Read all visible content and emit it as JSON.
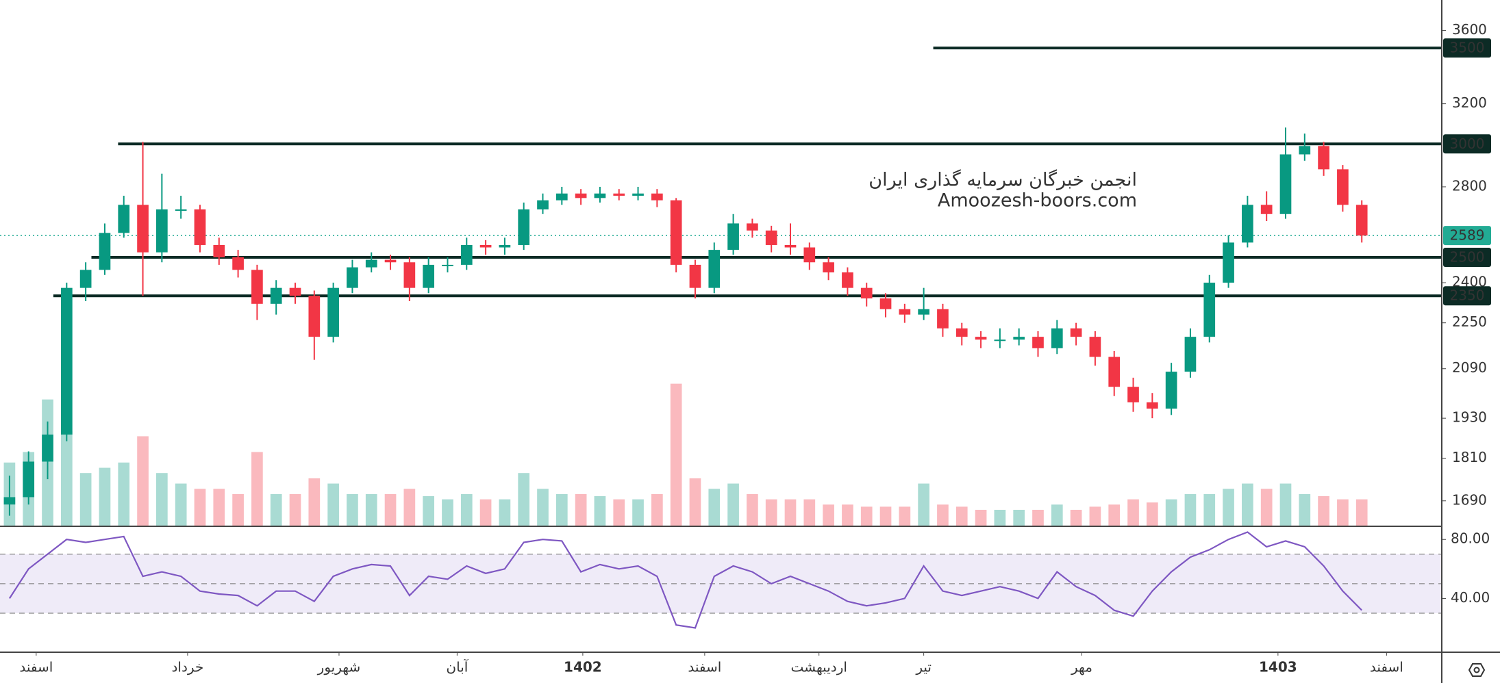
{
  "chart_data": {
    "type": "candlestick",
    "up_color": "#089981",
    "down_color": "#f23645",
    "xlim": [
      -0.5,
      75.2
    ],
    "xticks": [
      {
        "value": 1.4,
        "label": "اسفند"
      },
      {
        "value": 9.35,
        "label": "خرداد"
      },
      {
        "value": 17.3,
        "label": "شهریور"
      },
      {
        "value": 23.5,
        "label": "آبان"
      },
      {
        "value": 30.1,
        "label": "1402",
        "bold": true
      },
      {
        "value": 36.5,
        "label": "اسفند"
      },
      {
        "value": 42.5,
        "label": "اردیبهشت"
      },
      {
        "value": 48.0,
        "label": "تیر"
      },
      {
        "value": 56.3,
        "label": "مهر"
      },
      {
        "value": 66.6,
        "label": "1403",
        "bold": true
      },
      {
        "value": 72.3,
        "label": "اسفند"
      }
    ],
    "ylim": [
      1624,
      3781
    ],
    "log_scale": true,
    "yticks": [
      1690,
      1810,
      1930,
      2090,
      2250,
      2400,
      2800,
      3200,
      3600
    ],
    "ohlc": [
      [
        1680,
        1760,
        1650,
        1700
      ],
      [
        1700,
        1830,
        1680,
        1800
      ],
      [
        1800,
        1920,
        1750,
        1880
      ],
      [
        1880,
        2400,
        1860,
        2380
      ],
      [
        2380,
        2480,
        2330,
        2450
      ],
      [
        2450,
        2640,
        2430,
        2600
      ],
      [
        2600,
        2760,
        2580,
        2720
      ],
      [
        2720,
        3010,
        2350,
        2520
      ],
      [
        2520,
        2860,
        2480,
        2700
      ],
      [
        2700,
        2760,
        2660,
        2700
      ],
      [
        2700,
        2720,
        2520,
        2550
      ],
      [
        2550,
        2580,
        2470,
        2500
      ],
      [
        2500,
        2530,
        2420,
        2450
      ],
      [
        2450,
        2470,
        2260,
        2320
      ],
      [
        2320,
        2410,
        2280,
        2380
      ],
      [
        2380,
        2400,
        2320,
        2350
      ],
      [
        2350,
        2370,
        2120,
        2200
      ],
      [
        2200,
        2400,
        2180,
        2380
      ],
      [
        2380,
        2490,
        2360,
        2460
      ],
      [
        2460,
        2520,
        2440,
        2490
      ],
      [
        2490,
        2510,
        2450,
        2480
      ],
      [
        2480,
        2500,
        2330,
        2380
      ],
      [
        2380,
        2500,
        2360,
        2470
      ],
      [
        2470,
        2500,
        2440,
        2470
      ],
      [
        2470,
        2580,
        2450,
        2550
      ],
      [
        2550,
        2570,
        2510,
        2540
      ],
      [
        2540,
        2580,
        2510,
        2550
      ],
      [
        2550,
        2730,
        2530,
        2700
      ],
      [
        2700,
        2770,
        2680,
        2740
      ],
      [
        2740,
        2800,
        2720,
        2770
      ],
      [
        2770,
        2790,
        2720,
        2750
      ],
      [
        2750,
        2800,
        2730,
        2770
      ],
      [
        2770,
        2790,
        2740,
        2760
      ],
      [
        2760,
        2800,
        2740,
        2770
      ],
      [
        2770,
        2790,
        2710,
        2740
      ],
      [
        2740,
        2750,
        2440,
        2470
      ],
      [
        2470,
        2490,
        2340,
        2380
      ],
      [
        2380,
        2560,
        2360,
        2530
      ],
      [
        2530,
        2680,
        2510,
        2640
      ],
      [
        2640,
        2660,
        2580,
        2610
      ],
      [
        2610,
        2630,
        2520,
        2550
      ],
      [
        2550,
        2640,
        2510,
        2540
      ],
      [
        2540,
        2560,
        2450,
        2480
      ],
      [
        2480,
        2500,
        2410,
        2440
      ],
      [
        2440,
        2460,
        2350,
        2380
      ],
      [
        2380,
        2400,
        2310,
        2340
      ],
      [
        2340,
        2360,
        2270,
        2300
      ],
      [
        2300,
        2320,
        2250,
        2280
      ],
      [
        2280,
        2380,
        2260,
        2300
      ],
      [
        2300,
        2320,
        2200,
        2230
      ],
      [
        2230,
        2250,
        2170,
        2200
      ],
      [
        2200,
        2220,
        2160,
        2190
      ],
      [
        2190,
        2230,
        2160,
        2190
      ],
      [
        2190,
        2230,
        2170,
        2200
      ],
      [
        2200,
        2220,
        2130,
        2160
      ],
      [
        2160,
        2260,
        2140,
        2230
      ],
      [
        2230,
        2250,
        2170,
        2200
      ],
      [
        2200,
        2220,
        2100,
        2130
      ],
      [
        2130,
        2150,
        2000,
        2030
      ],
      [
        2030,
        2060,
        1950,
        1980
      ],
      [
        1980,
        2010,
        1930,
        1960
      ],
      [
        1960,
        2110,
        1940,
        2080
      ],
      [
        2080,
        2230,
        2060,
        2200
      ],
      [
        2200,
        2430,
        2180,
        2400
      ],
      [
        2400,
        2590,
        2380,
        2560
      ],
      [
        2560,
        2760,
        2540,
        2720
      ],
      [
        2720,
        2780,
        2650,
        2680
      ],
      [
        2680,
        3080,
        2660,
        2950
      ],
      [
        2950,
        3050,
        2920,
        2990
      ],
      [
        2990,
        3010,
        2850,
        2880
      ],
      [
        2880,
        2900,
        2690,
        2720
      ],
      [
        2720,
        2740,
        2560,
        2589
      ]
    ],
    "volume": [
      60,
      70,
      120,
      90,
      50,
      55,
      60,
      85,
      50,
      40,
      35,
      35,
      30,
      70,
      30,
      30,
      45,
      40,
      30,
      30,
      30,
      35,
      28,
      25,
      30,
      25,
      25,
      50,
      35,
      30,
      30,
      28,
      25,
      25,
      30,
      135,
      45,
      35,
      40,
      30,
      25,
      25,
      25,
      20,
      20,
      18,
      18,
      18,
      40,
      20,
      18,
      15,
      15,
      15,
      15,
      20,
      15,
      18,
      20,
      25,
      22,
      25,
      30,
      30,
      35,
      40,
      35,
      40,
      30,
      28,
      25,
      25
    ],
    "levels": [
      {
        "value": 3500,
        "from": 48.5
      },
      {
        "value": 3000,
        "from": 5.7
      },
      {
        "value": 2500,
        "from": 4.3
      },
      {
        "value": 2350,
        "from": 2.3
      }
    ],
    "level_color": "#0c2b25",
    "last_price": 2589,
    "last_color": "#22ab94",
    "watermark": [
      "انجمن خبرگان سرمایه گذاری ایران",
      "Amoozesh-boors.com"
    ],
    "rsi": {
      "values": [
        40,
        60,
        70,
        80,
        78,
        80,
        82,
        55,
        58,
        55,
        45,
        43,
        42,
        35,
        45,
        45,
        38,
        55,
        60,
        63,
        62,
        42,
        55,
        53,
        62,
        57,
        60,
        78,
        80,
        79,
        58,
        63,
        60,
        62,
        55,
        22,
        20,
        55,
        62,
        58,
        50,
        55,
        50,
        45,
        38,
        35,
        37,
        40,
        62,
        45,
        42,
        45,
        48,
        45,
        40,
        58,
        48,
        42,
        32,
        28,
        45,
        58,
        68,
        73,
        80,
        85,
        75,
        79,
        75,
        62,
        45,
        32
      ],
      "ylim": [
        4,
        88
      ],
      "yticks": [
        {
          "value": 80,
          "label": "80.00"
        },
        {
          "value": 40,
          "label": "40.00"
        }
      ],
      "bands": [
        30,
        50,
        70
      ],
      "color": "#7e57c2"
    }
  }
}
